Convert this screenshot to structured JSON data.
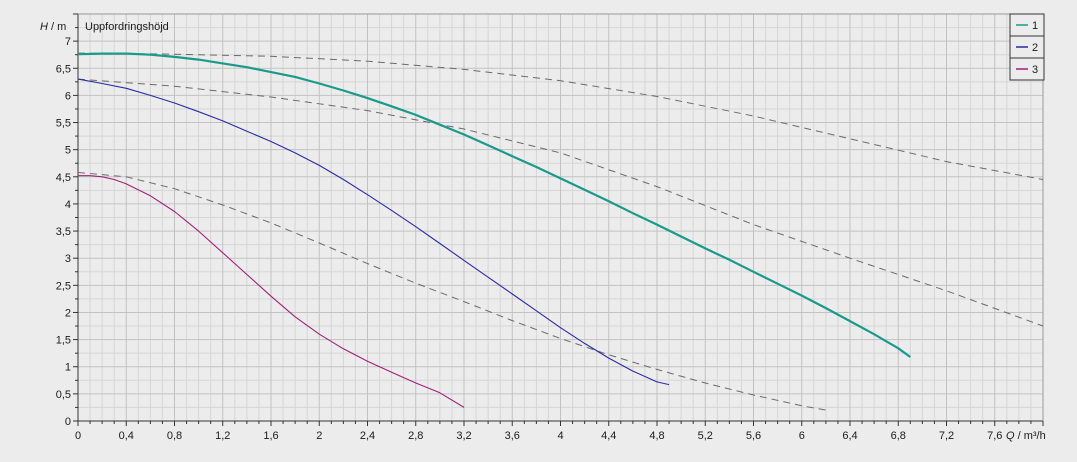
{
  "chart_data": {
    "type": "line",
    "title": "Uppfordringshöjd",
    "y_axis_label": {
      "var": "H",
      "unit": "m"
    },
    "x_axis_label": {
      "var": "Q",
      "unit": "m³/h"
    },
    "xlim": [
      0,
      8
    ],
    "ylim": [
      0,
      7.5
    ],
    "x_ticks": [
      0,
      0.4,
      0.8,
      1.2,
      1.6,
      2,
      2.4,
      2.8,
      3.2,
      3.6,
      4,
      4.4,
      4.8,
      5.2,
      5.6,
      6,
      6.4,
      6.8,
      7.2,
      7.6
    ],
    "x_tick_labels": [
      "0",
      "0,4",
      "0,8",
      "1,2",
      "1,6",
      "2",
      "2,4",
      "2,8",
      "3,2",
      "3,6",
      "4",
      "4,4",
      "4,8",
      "5,2",
      "5,6",
      "6",
      "6,4",
      "6,8",
      "7,2",
      "7,6"
    ],
    "y_ticks": [
      0,
      0.5,
      1,
      1.5,
      2,
      2.5,
      3,
      3.5,
      4,
      4.5,
      5,
      5.5,
      6,
      6.5,
      7
    ],
    "y_tick_labels": [
      "0",
      "0,5",
      "1",
      "1,5",
      "2",
      "2,5",
      "3",
      "3,5",
      "4",
      "4,5",
      "5",
      "5,5",
      "6",
      "6,5",
      "7"
    ],
    "grid": true,
    "legend_position": "top-right",
    "series": [
      {
        "name": "1",
        "color": "#1a9a8a",
        "style": "solid",
        "x": [
          0,
          0.2,
          0.4,
          0.6,
          0.8,
          1.0,
          1.2,
          1.4,
          1.6,
          1.8,
          2.0,
          2.2,
          2.4,
          2.6,
          2.8,
          3.0,
          3.2,
          3.4,
          3.6,
          3.8,
          4.0,
          4.2,
          4.4,
          4.6,
          4.8,
          5.0,
          5.2,
          5.4,
          5.6,
          5.8,
          6.0,
          6.2,
          6.4,
          6.6,
          6.8,
          6.9
        ],
        "y": [
          6.76,
          6.77,
          6.77,
          6.75,
          6.71,
          6.66,
          6.59,
          6.52,
          6.43,
          6.34,
          6.22,
          6.09,
          5.95,
          5.8,
          5.64,
          5.46,
          5.28,
          5.08,
          4.88,
          4.68,
          4.47,
          4.26,
          4.05,
          3.83,
          3.62,
          3.4,
          3.18,
          2.97,
          2.75,
          2.53,
          2.31,
          2.08,
          1.84,
          1.6,
          1.34,
          1.18
        ]
      },
      {
        "name": "2",
        "color": "#2a2aa8",
        "style": "solid",
        "x": [
          0,
          0.2,
          0.4,
          0.6,
          0.8,
          1.0,
          1.2,
          1.4,
          1.6,
          1.8,
          2.0,
          2.2,
          2.4,
          2.6,
          2.8,
          3.0,
          3.2,
          3.4,
          3.6,
          3.8,
          4.0,
          4.2,
          4.4,
          4.6,
          4.8,
          4.9
        ],
        "y": [
          6.3,
          6.22,
          6.13,
          6.0,
          5.86,
          5.7,
          5.53,
          5.34,
          5.15,
          4.94,
          4.71,
          4.45,
          4.17,
          3.88,
          3.58,
          3.27,
          2.96,
          2.65,
          2.34,
          2.03,
          1.72,
          1.43,
          1.16,
          0.92,
          0.72,
          0.67
        ]
      },
      {
        "name": "3",
        "color": "#a0207a",
        "style": "solid",
        "x": [
          0,
          0.1,
          0.2,
          0.3,
          0.4,
          0.6,
          0.8,
          1.0,
          1.2,
          1.4,
          1.6,
          1.8,
          2.0,
          2.2,
          2.4,
          2.6,
          2.8,
          3.0,
          3.2
        ],
        "y": [
          4.52,
          4.52,
          4.5,
          4.45,
          4.37,
          4.15,
          3.86,
          3.5,
          3.1,
          2.7,
          2.3,
          1.92,
          1.6,
          1.33,
          1.1,
          0.9,
          0.7,
          0.52,
          0.25
        ]
      }
    ],
    "reference_curves": [
      {
        "color": "#6a6a6a",
        "style": "dashed",
        "x": [
          0,
          0.8,
          1.6,
          2.4,
          3.2,
          4.0,
          4.8,
          5.6,
          6.4,
          7.2,
          8.0
        ],
        "y": [
          6.78,
          6.76,
          6.72,
          6.63,
          6.48,
          6.27,
          5.98,
          5.62,
          5.2,
          4.78,
          4.45
        ]
      },
      {
        "color": "#6a6a6a",
        "style": "dashed",
        "x": [
          0,
          0.8,
          1.6,
          2.4,
          3.2,
          4.0,
          4.8,
          5.6,
          6.4,
          7.2,
          8.0
        ],
        "y": [
          6.3,
          6.17,
          5.97,
          5.72,
          5.38,
          4.94,
          4.32,
          3.62,
          3.0,
          2.4,
          1.75
        ]
      },
      {
        "color": "#6a6a6a",
        "style": "dashed",
        "x": [
          0,
          0.4,
          0.8,
          1.2,
          1.6,
          2.0,
          2.4,
          2.8,
          3.2,
          3.6,
          4.0,
          4.4,
          4.8,
          5.2,
          5.6,
          6.0,
          6.2
        ],
        "y": [
          4.58,
          4.5,
          4.28,
          3.98,
          3.65,
          3.28,
          2.9,
          2.54,
          2.2,
          1.85,
          1.52,
          1.22,
          0.95,
          0.7,
          0.48,
          0.28,
          0.2
        ]
      }
    ]
  }
}
